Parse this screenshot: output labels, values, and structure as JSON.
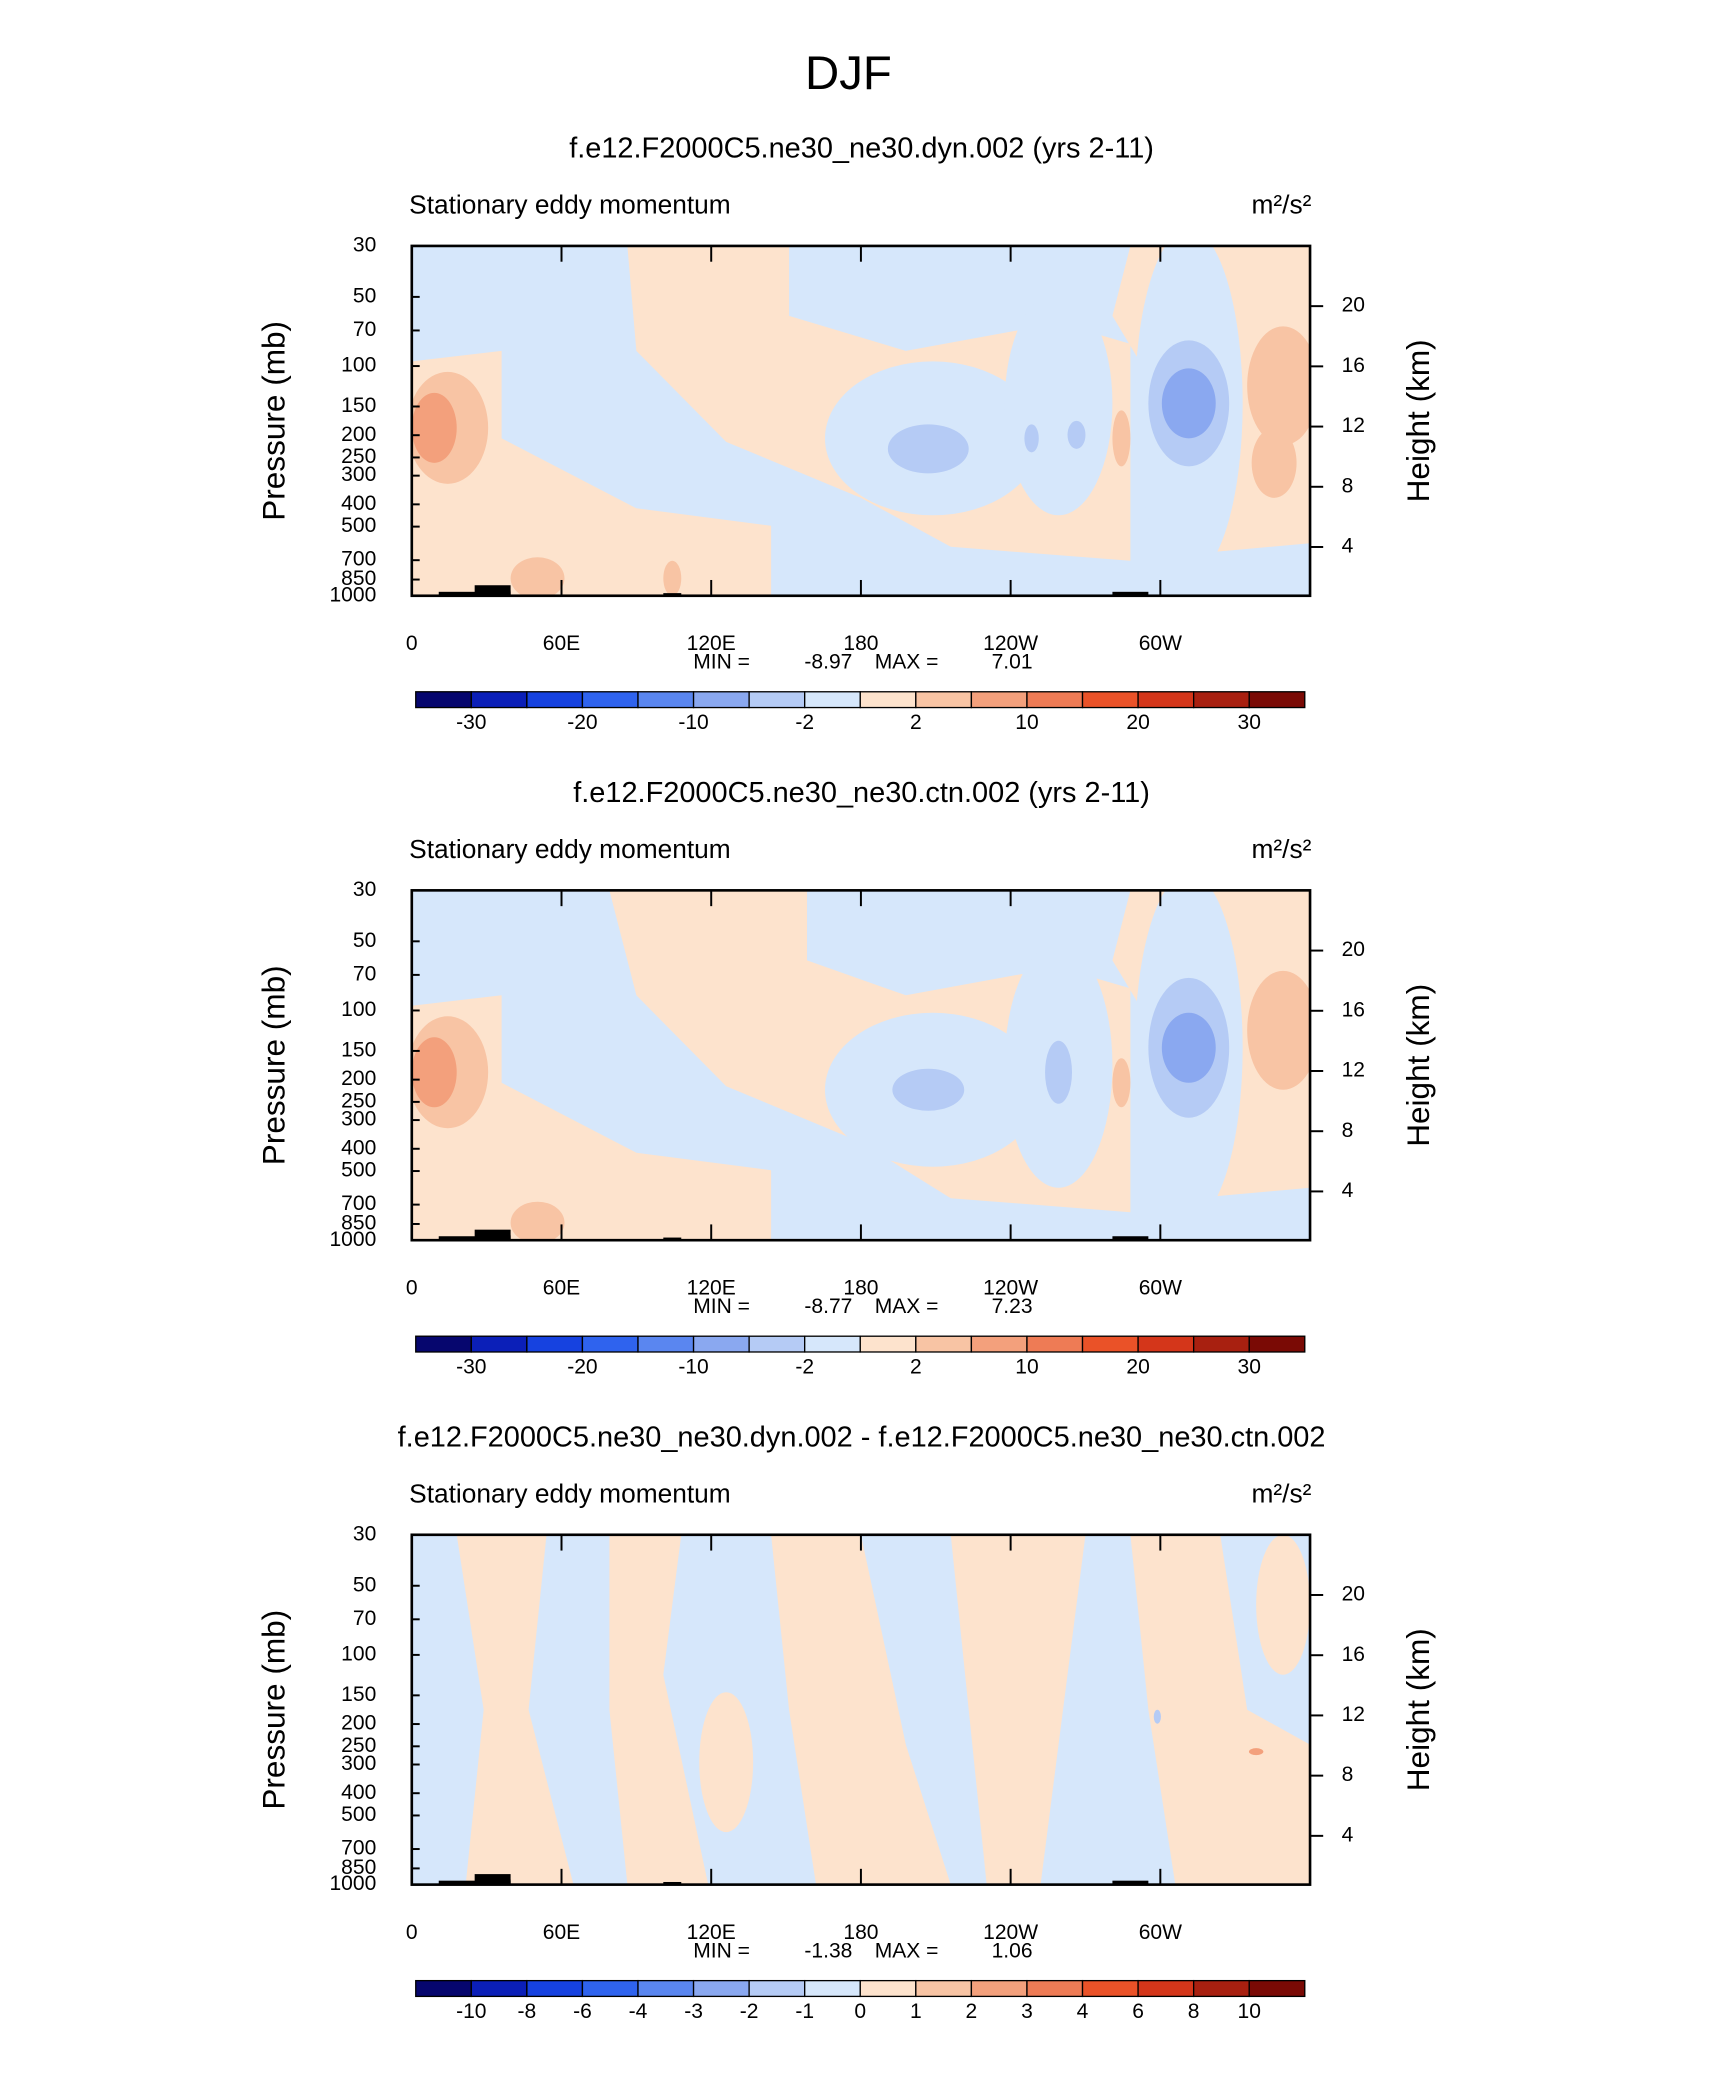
{
  "title": "DJF",
  "chart_data": [
    {
      "type": "contour",
      "title": "f.e12.F2000C5.ne30_ne30.dyn.002 (yrs 2-11)",
      "subtitle_left": "Stationary eddy momentum",
      "subtitle_right": "m²/s²",
      "ylabel": "Pressure (mb)",
      "y2label": "Height (km)",
      "ylog": true,
      "ylim": [
        1000,
        30
      ],
      "yticks": [
        30,
        50,
        70,
        100,
        150,
        200,
        250,
        300,
        400,
        500,
        700,
        850,
        1000
      ],
      "y2lim": [
        0.76,
        24.0
      ],
      "y2ticks": [
        4,
        8,
        12,
        16,
        20
      ],
      "xlim": [
        0,
        360
      ],
      "xticks": [
        0,
        {
          "value": 60,
          "label": "60E"
        },
        {
          "value": 120,
          "label": "120E"
        },
        180,
        {
          "value": 240,
          "label": "120W"
        },
        {
          "value": 300,
          "label": "60W"
        }
      ],
      "min_label": "MIN =",
      "min": -8.97,
      "max_label": "MAX =",
      "max": 7.01,
      "colorbar": {
        "colors": [
          "#06066e",
          "#0b1fb8",
          "#1642e0",
          "#2f63ee",
          "#5a86f0",
          "#8aa8f0",
          "#b5cbf5",
          "#d6e7fb",
          "#fde3cd",
          "#f8c4a4",
          "#f3a07c",
          "#ee7b55",
          "#ea5228",
          "#d4361a",
          "#a82010",
          "#7a0a05"
        ],
        "labels": [
          -30,
          -20,
          -10,
          -2,
          2,
          10,
          20,
          30
        ]
      }
    },
    {
      "type": "contour",
      "title": "f.e12.F2000C5.ne30_ne30.ctn.002 (yrs 2-11)",
      "subtitle_left": "Stationary eddy momentum",
      "subtitle_right": "m²/s²",
      "ylabel": "Pressure (mb)",
      "y2label": "Height (km)",
      "ylog": true,
      "ylim": [
        1000,
        30
      ],
      "yticks": [
        30,
        50,
        70,
        100,
        150,
        200,
        250,
        300,
        400,
        500,
        700,
        850,
        1000
      ],
      "y2lim": [
        0.76,
        24.0
      ],
      "y2ticks": [
        4,
        8,
        12,
        16,
        20
      ],
      "xlim": [
        0,
        360
      ],
      "xticks": [
        0,
        {
          "value": 60,
          "label": "60E"
        },
        {
          "value": 120,
          "label": "120E"
        },
        180,
        {
          "value": 240,
          "label": "120W"
        },
        {
          "value": 300,
          "label": "60W"
        }
      ],
      "min_label": "MIN =",
      "min": -8.77,
      "max_label": "MAX =",
      "max": 7.23,
      "colorbar": {
        "colors": [
          "#06066e",
          "#0b1fb8",
          "#1642e0",
          "#2f63ee",
          "#5a86f0",
          "#8aa8f0",
          "#b5cbf5",
          "#d6e7fb",
          "#fde3cd",
          "#f8c4a4",
          "#f3a07c",
          "#ee7b55",
          "#ea5228",
          "#d4361a",
          "#a82010",
          "#7a0a05"
        ],
        "labels": [
          -30,
          -20,
          -10,
          -2,
          2,
          10,
          20,
          30
        ]
      }
    },
    {
      "type": "contour",
      "title": "f.e12.F2000C5.ne30_ne30.dyn.002 - f.e12.F2000C5.ne30_ne30.ctn.002",
      "subtitle_left": "Stationary eddy momentum",
      "subtitle_right": "m²/s²",
      "ylabel": "Pressure (mb)",
      "y2label": "Height (km)",
      "ylog": true,
      "ylim": [
        1000,
        30
      ],
      "yticks": [
        30,
        50,
        70,
        100,
        150,
        200,
        250,
        300,
        400,
        500,
        700,
        850,
        1000
      ],
      "y2lim": [
        0.76,
        24.0
      ],
      "y2ticks": [
        4,
        8,
        12,
        16,
        20
      ],
      "xlim": [
        0,
        360
      ],
      "xticks": [
        0,
        {
          "value": 60,
          "label": "60E"
        },
        {
          "value": 120,
          "label": "120E"
        },
        180,
        {
          "value": 240,
          "label": "120W"
        },
        {
          "value": 300,
          "label": "60W"
        }
      ],
      "min_label": "MIN =",
      "min": -1.38,
      "max_label": "MAX =",
      "max": 1.06,
      "colorbar": {
        "colors": [
          "#06066e",
          "#0b1fb8",
          "#1642e0",
          "#2f63ee",
          "#5a86f0",
          "#8aa8f0",
          "#b5cbf5",
          "#d6e7fb",
          "#fde3cd",
          "#f8c4a4",
          "#f3a07c",
          "#ee7b55",
          "#ea5228",
          "#d4361a",
          "#a82010",
          "#7a0a05"
        ],
        "labels": [
          -10,
          -8,
          -6,
          -4,
          -3,
          -2,
          -1,
          0,
          1,
          2,
          3,
          4,
          6,
          8,
          10
        ]
      }
    }
  ]
}
